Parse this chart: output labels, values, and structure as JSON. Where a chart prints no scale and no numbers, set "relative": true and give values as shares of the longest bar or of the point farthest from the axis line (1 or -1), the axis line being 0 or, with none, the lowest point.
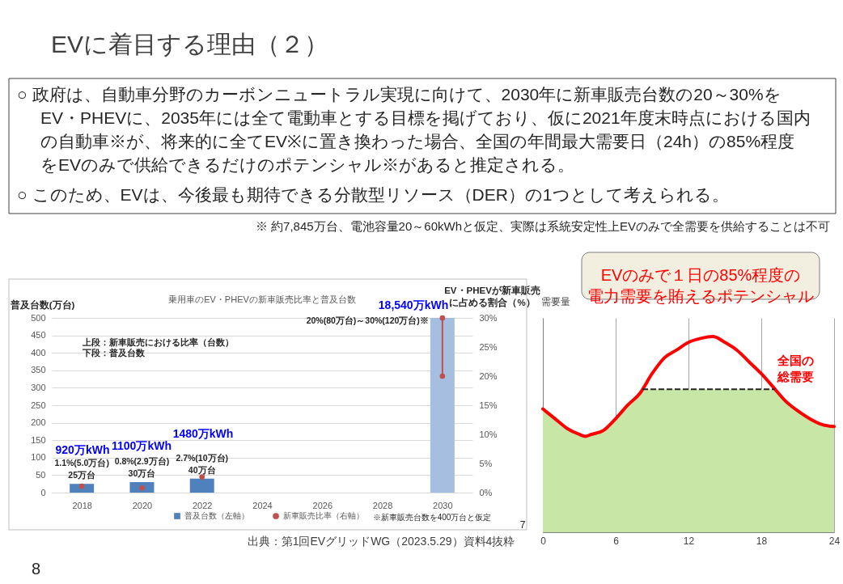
{
  "chart_data": [
    {
      "type": "other",
      "title": "EVに着目する理由（２）",
      "annotations": [
        "○ 政府は、自動車分野のカーボンニュートラル実現に向けて、2030年に新車販売台数の20～30%を",
        "EV・PHEVに、2035年には全て電動車とする目標を掲げており、仮に2021年度末時点における国内",
        "の自動車※が、将来的に全てEV※に置き換わった場合、全国の年間最大需要日（24h）の85%程度",
        "をEVのみで供給できるだけのポテンシャル※があると推定される。",
        "○ このため、EVは、今後最も期待できる分散型リソース（DER）の1つとして考えられる。",
        "※ 約7,845万台、電池容量20～60kWhと仮定、実際は系統安定性上EVのみで全需要を供給することは不可",
        "8"
      ]
    },
    {
      "type": "bar",
      "title": "乗用車のEV・PHEVの新車販売比率と普及台数",
      "ylabel": "普及台数(万台)",
      "y2label": "EV・PHEVが新車販売に占める割合（%）",
      "xlim": [
        2017,
        2031
      ],
      "xticks": [
        2018,
        2020,
        2022,
        2024,
        2026,
        2028,
        2030
      ],
      "ylim": [
        0,
        500
      ],
      "yticks": [
        0,
        50,
        100,
        150,
        200,
        250,
        300,
        350,
        400,
        450,
        500
      ],
      "y2lim": [
        0,
        30
      ],
      "y2ticks": [
        {
          "value": 0,
          "label": "0%"
        },
        {
          "value": 5,
          "label": "5%"
        },
        {
          "value": 10,
          "label": "10%"
        },
        {
          "value": 15,
          "label": "15%"
        },
        {
          "value": 20,
          "label": "20%"
        },
        {
          "value": 25,
          "label": "25%"
        },
        {
          "value": 30,
          "label": "30%"
        }
      ],
      "grid": "y",
      "legend": "bottom",
      "series": [
        {
          "name": "普及台数（左軸）",
          "type": "bar",
          "color": "#4f81bd",
          "x": [
            2018,
            2020,
            2022,
            2030
          ],
          "colors": [
            "#4f81bd",
            "#4f81bd",
            "#4f81bd",
            "#a6bfe0"
          ],
          "values": [
            25,
            30,
            40,
            500
          ],
          "value_labels": [
            "25万台",
            "30万台",
            "40万台",
            null
          ]
        },
        {
          "name": "新車販売比率（右軸）",
          "type": "scatter",
          "axis": "y2",
          "color": "#c0504d",
          "x": [
            2018,
            2020,
            2022,
            2030,
            2030
          ],
          "values": [
            1.1,
            0.8,
            2.7,
            20,
            30
          ],
          "value_labels": [
            "1.1%(5.0万台)",
            "0.8%(2.9万台)",
            "2.7%(10万台)",
            null,
            "20%(80万台)～30%(120万台)※"
          ]
        },
        {
          "type": "line",
          "axis": "y2",
          "color": "#c0504d",
          "x": [
            2030,
            2030
          ],
          "values": [
            20,
            30
          ]
        }
      ],
      "annotations": [
        "920万kWh",
        "1100万kWh",
        "1480万kWh",
        "18,540万kWh",
        "上段：新車販売における比率（台数）",
        "下段：普及台数",
        "※新車販売台数を400万台と仮定",
        "出典：第1回EVグリッドWG（2023.5.29）資料4抜粋",
        "7"
      ]
    },
    {
      "type": "line",
      "ylabel": "需要量",
      "xlim": [
        0,
        24
      ],
      "xticks": [
        0,
        6,
        12,
        18,
        24
      ],
      "grid": "x",
      "relative": true,
      "series": [
        {
          "type": "area",
          "color": "#c8e7a7",
          "x": [
            0,
            1,
            2,
            3,
            3.5,
            4,
            5,
            6,
            7,
            8,
            8.2,
            19.1,
            20,
            21,
            22,
            23,
            24
          ],
          "values": [
            0.63,
            0.58,
            0.53,
            0.5,
            0.49,
            0.5,
            0.52,
            0.58,
            0.65,
            0.71,
            0.73,
            0.73,
            0.67,
            0.62,
            0.58,
            0.55,
            0.54
          ]
        },
        {
          "name": "全国の総需要",
          "type": "line",
          "color": "#ff0000",
          "x": [
            0,
            1,
            2,
            3,
            3.5,
            4,
            5,
            6,
            7,
            8,
            9,
            10,
            11,
            12,
            13,
            14,
            15,
            16,
            17,
            18,
            19,
            20,
            21,
            22,
            23,
            24
          ],
          "values": [
            0.63,
            0.58,
            0.53,
            0.5,
            0.49,
            0.5,
            0.52,
            0.58,
            0.65,
            0.71,
            0.81,
            0.89,
            0.93,
            0.97,
            0.99,
            1,
            0.97,
            0.93,
            0.87,
            0.81,
            0.74,
            0.67,
            0.62,
            0.58,
            0.55,
            0.54
          ]
        },
        {
          "type": "line",
          "line_style": "dashed",
          "color": "#262626",
          "x": [
            8.2,
            19.1
          ],
          "values": [
            0.73,
            0.73
          ]
        }
      ],
      "annotations": [
        "EVのみで１日の85%程度の電力需要を賄えるポテンシャル"
      ]
    }
  ]
}
